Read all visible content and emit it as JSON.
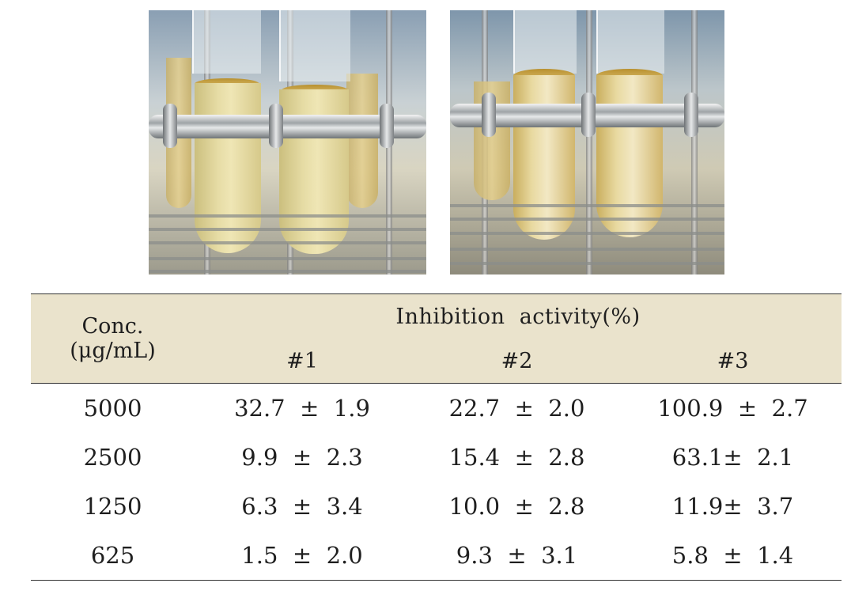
{
  "table": {
    "header": {
      "conc_line1": "Conc.",
      "conc_line2": "(μg/mL)",
      "group": "Inhibition  activity(%)",
      "samples": [
        "#1",
        "#2",
        "#3"
      ]
    },
    "rows": [
      {
        "conc": "5000",
        "s1": "32.7  ±  1.9",
        "s2": "22.7  ±  2.0",
        "s3": "100.9  ±  2.7"
      },
      {
        "conc": "2500",
        "s1": "9.9  ±  2.3",
        "s2": "15.4  ±  2.8",
        "s3": "63.1±  2.1"
      },
      {
        "conc": "1250",
        "s1": "6.3  ±  3.4",
        "s2": "10.0  ±  2.8",
        "s3": "11.9±  3.7"
      },
      {
        "conc": "625",
        "s1": "1.5  ±  2.0",
        "s2": "9.3  ±  3.1",
        "s3": "5.8  ±  1.4"
      }
    ]
  }
}
